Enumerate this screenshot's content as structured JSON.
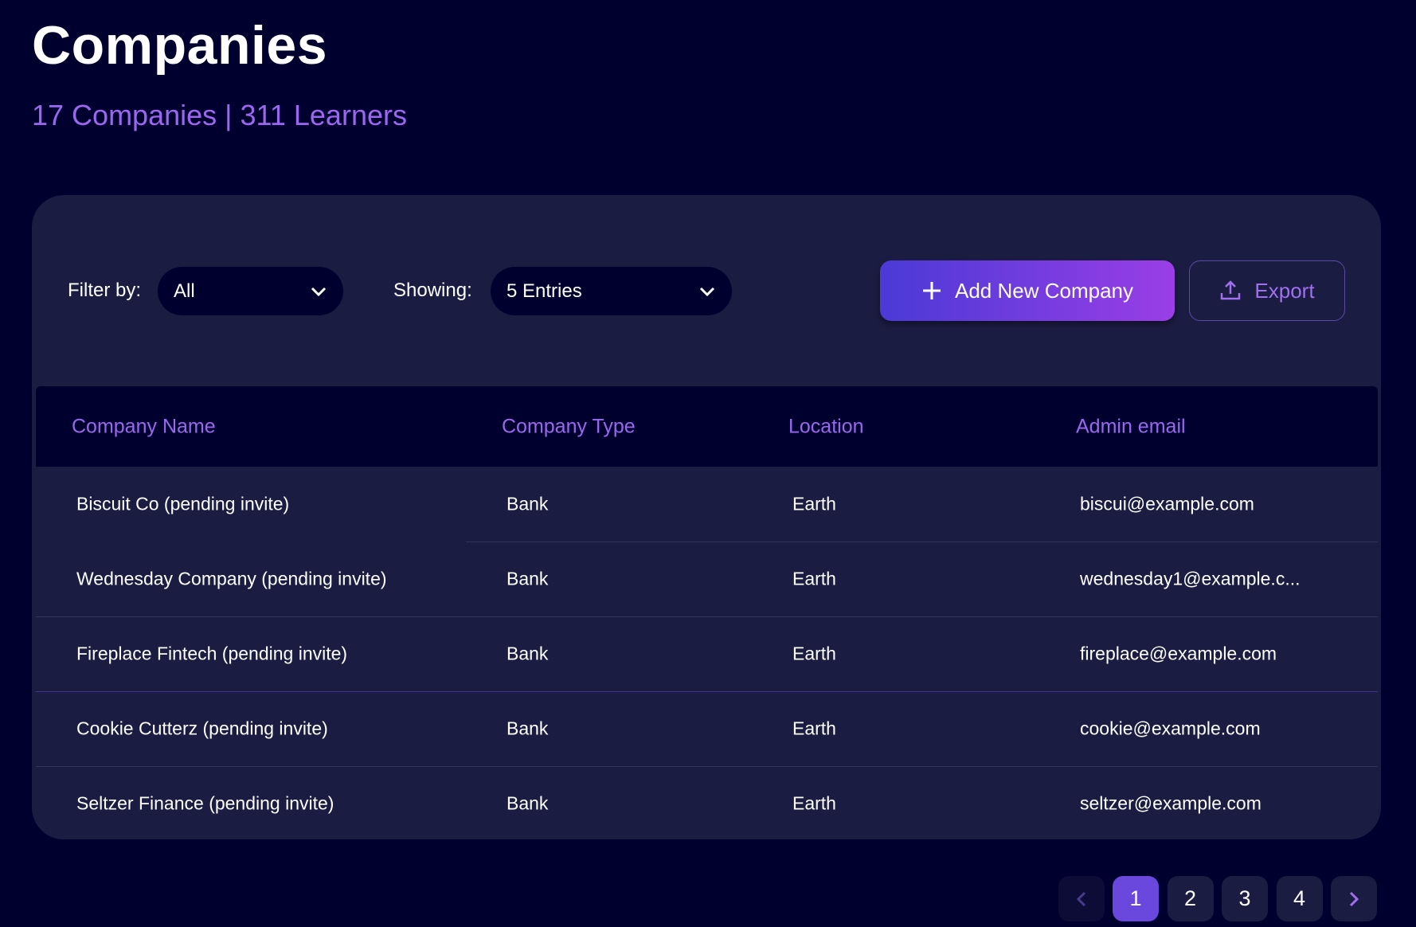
{
  "header": {
    "title": "Companies",
    "subtitle": "17 Companies | 311 Learners"
  },
  "toolbar": {
    "filter_label": "Filter by:",
    "filter_value": "All",
    "showing_label": "Showing:",
    "showing_value": "5 Entries",
    "add_label": "Add New Company",
    "export_label": "Export"
  },
  "table": {
    "columns": [
      "Company Name",
      "Company Type",
      "Location",
      "Admin email"
    ],
    "rows": [
      [
        "Biscuit Co (pending invite)",
        "Bank",
        "Earth",
        "biscui@example.com"
      ],
      [
        "Wednesday Company (pending invite)",
        "Bank",
        "Earth",
        "wednesday1@example.c..."
      ],
      [
        "Fireplace Fintech (pending invite)",
        "Bank",
        "Earth",
        "fireplace@example.com"
      ],
      [
        "Cookie Cutterz (pending invite)",
        "Bank",
        "Earth",
        "cookie@example.com"
      ],
      [
        "Seltzer Finance (pending invite)",
        "Bank",
        "Earth",
        "seltzer@example.com"
      ]
    ]
  },
  "pagination": {
    "pages": [
      "1",
      "2",
      "3",
      "4"
    ],
    "current": "1"
  },
  "colors": {
    "accent": "#9d66f0",
    "background": "#00002f",
    "card": "#1b1c42",
    "active_page": "#6a48de"
  }
}
